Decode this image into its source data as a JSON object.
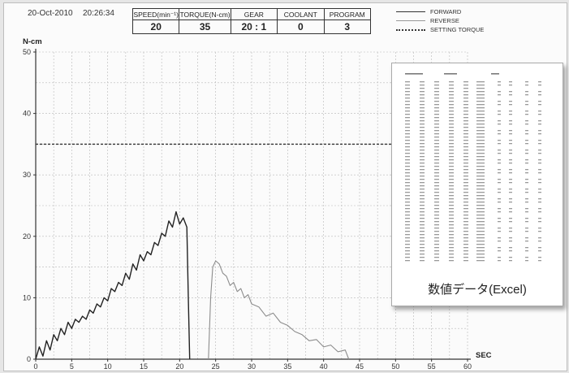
{
  "header": {
    "date": "20-Oct-2010",
    "time": "20:26:34"
  },
  "params": [
    {
      "label": "SPEED(min⁻¹)",
      "value": "20"
    },
    {
      "label": "TORQUE(N-cm)",
      "value": "35"
    },
    {
      "label": "GEAR",
      "value": "20 : 1"
    },
    {
      "label": "COOLANT",
      "value": "0"
    },
    {
      "label": "PROGRAM",
      "value": "3"
    }
  ],
  "legend": [
    "FORWARD",
    "REVERSE",
    "SETTING TORQUE"
  ],
  "data_window": {
    "caption": "数値データ(Excel)"
  },
  "chart_data": {
    "type": "line",
    "xlabel": "SEC",
    "ylabel": "N-cm",
    "xlim": [
      0,
      60
    ],
    "ylim": [
      0,
      50
    ],
    "x_ticks": [
      0,
      5,
      10,
      15,
      20,
      25,
      30,
      35,
      40,
      45,
      50,
      55,
      60
    ],
    "y_ticks": [
      0,
      10,
      20,
      30,
      40,
      50
    ],
    "grid": true,
    "setting_torque": 35,
    "series": [
      {
        "name": "FORWARD",
        "color": "#222222",
        "x": [
          0,
          0.5,
          1.0,
          1.5,
          2.0,
          2.5,
          3.0,
          3.5,
          4.0,
          4.5,
          5.0,
          5.5,
          6.0,
          6.5,
          7.0,
          7.5,
          8.0,
          8.5,
          9.0,
          9.5,
          10.0,
          10.5,
          11.0,
          11.5,
          12.0,
          12.5,
          13.0,
          13.5,
          14.0,
          14.5,
          15.0,
          15.5,
          16.0,
          16.5,
          17.0,
          17.5,
          18.0,
          18.5,
          19.0,
          19.5,
          20.0,
          20.5,
          21.0,
          21.2,
          21.4
        ],
        "values": [
          0,
          2,
          0.5,
          3,
          1.5,
          4,
          3,
          5,
          4,
          6,
          5,
          6.5,
          6,
          7,
          6.5,
          8,
          7.5,
          9,
          8.5,
          10,
          9.5,
          11.5,
          11,
          12.5,
          12,
          14,
          13,
          15.5,
          14.5,
          17,
          16,
          17.5,
          17,
          19,
          18.5,
          20.5,
          20,
          22.5,
          21.5,
          24,
          22,
          23,
          21.5,
          10,
          0
        ]
      },
      {
        "name": "REVERSE",
        "color": "#8c8c8c",
        "x": [
          24.0,
          24.3,
          24.6,
          25.0,
          25.5,
          26.0,
          26.5,
          27.0,
          27.5,
          28.0,
          28.5,
          29.0,
          29.5,
          30.0,
          31.0,
          32.0,
          33.0,
          34.0,
          35.0,
          36.0,
          37.0,
          38.0,
          39.0,
          40.0,
          41.0,
          42.0,
          43.0,
          43.5
        ],
        "values": [
          0,
          10,
          15,
          16,
          15.5,
          14,
          13.5,
          12,
          12.5,
          11,
          11.5,
          10,
          10.5,
          9,
          8.5,
          7,
          7.5,
          6,
          5.5,
          4.5,
          4,
          3,
          3.2,
          2,
          2.3,
          1.2,
          1.5,
          0
        ]
      }
    ]
  }
}
